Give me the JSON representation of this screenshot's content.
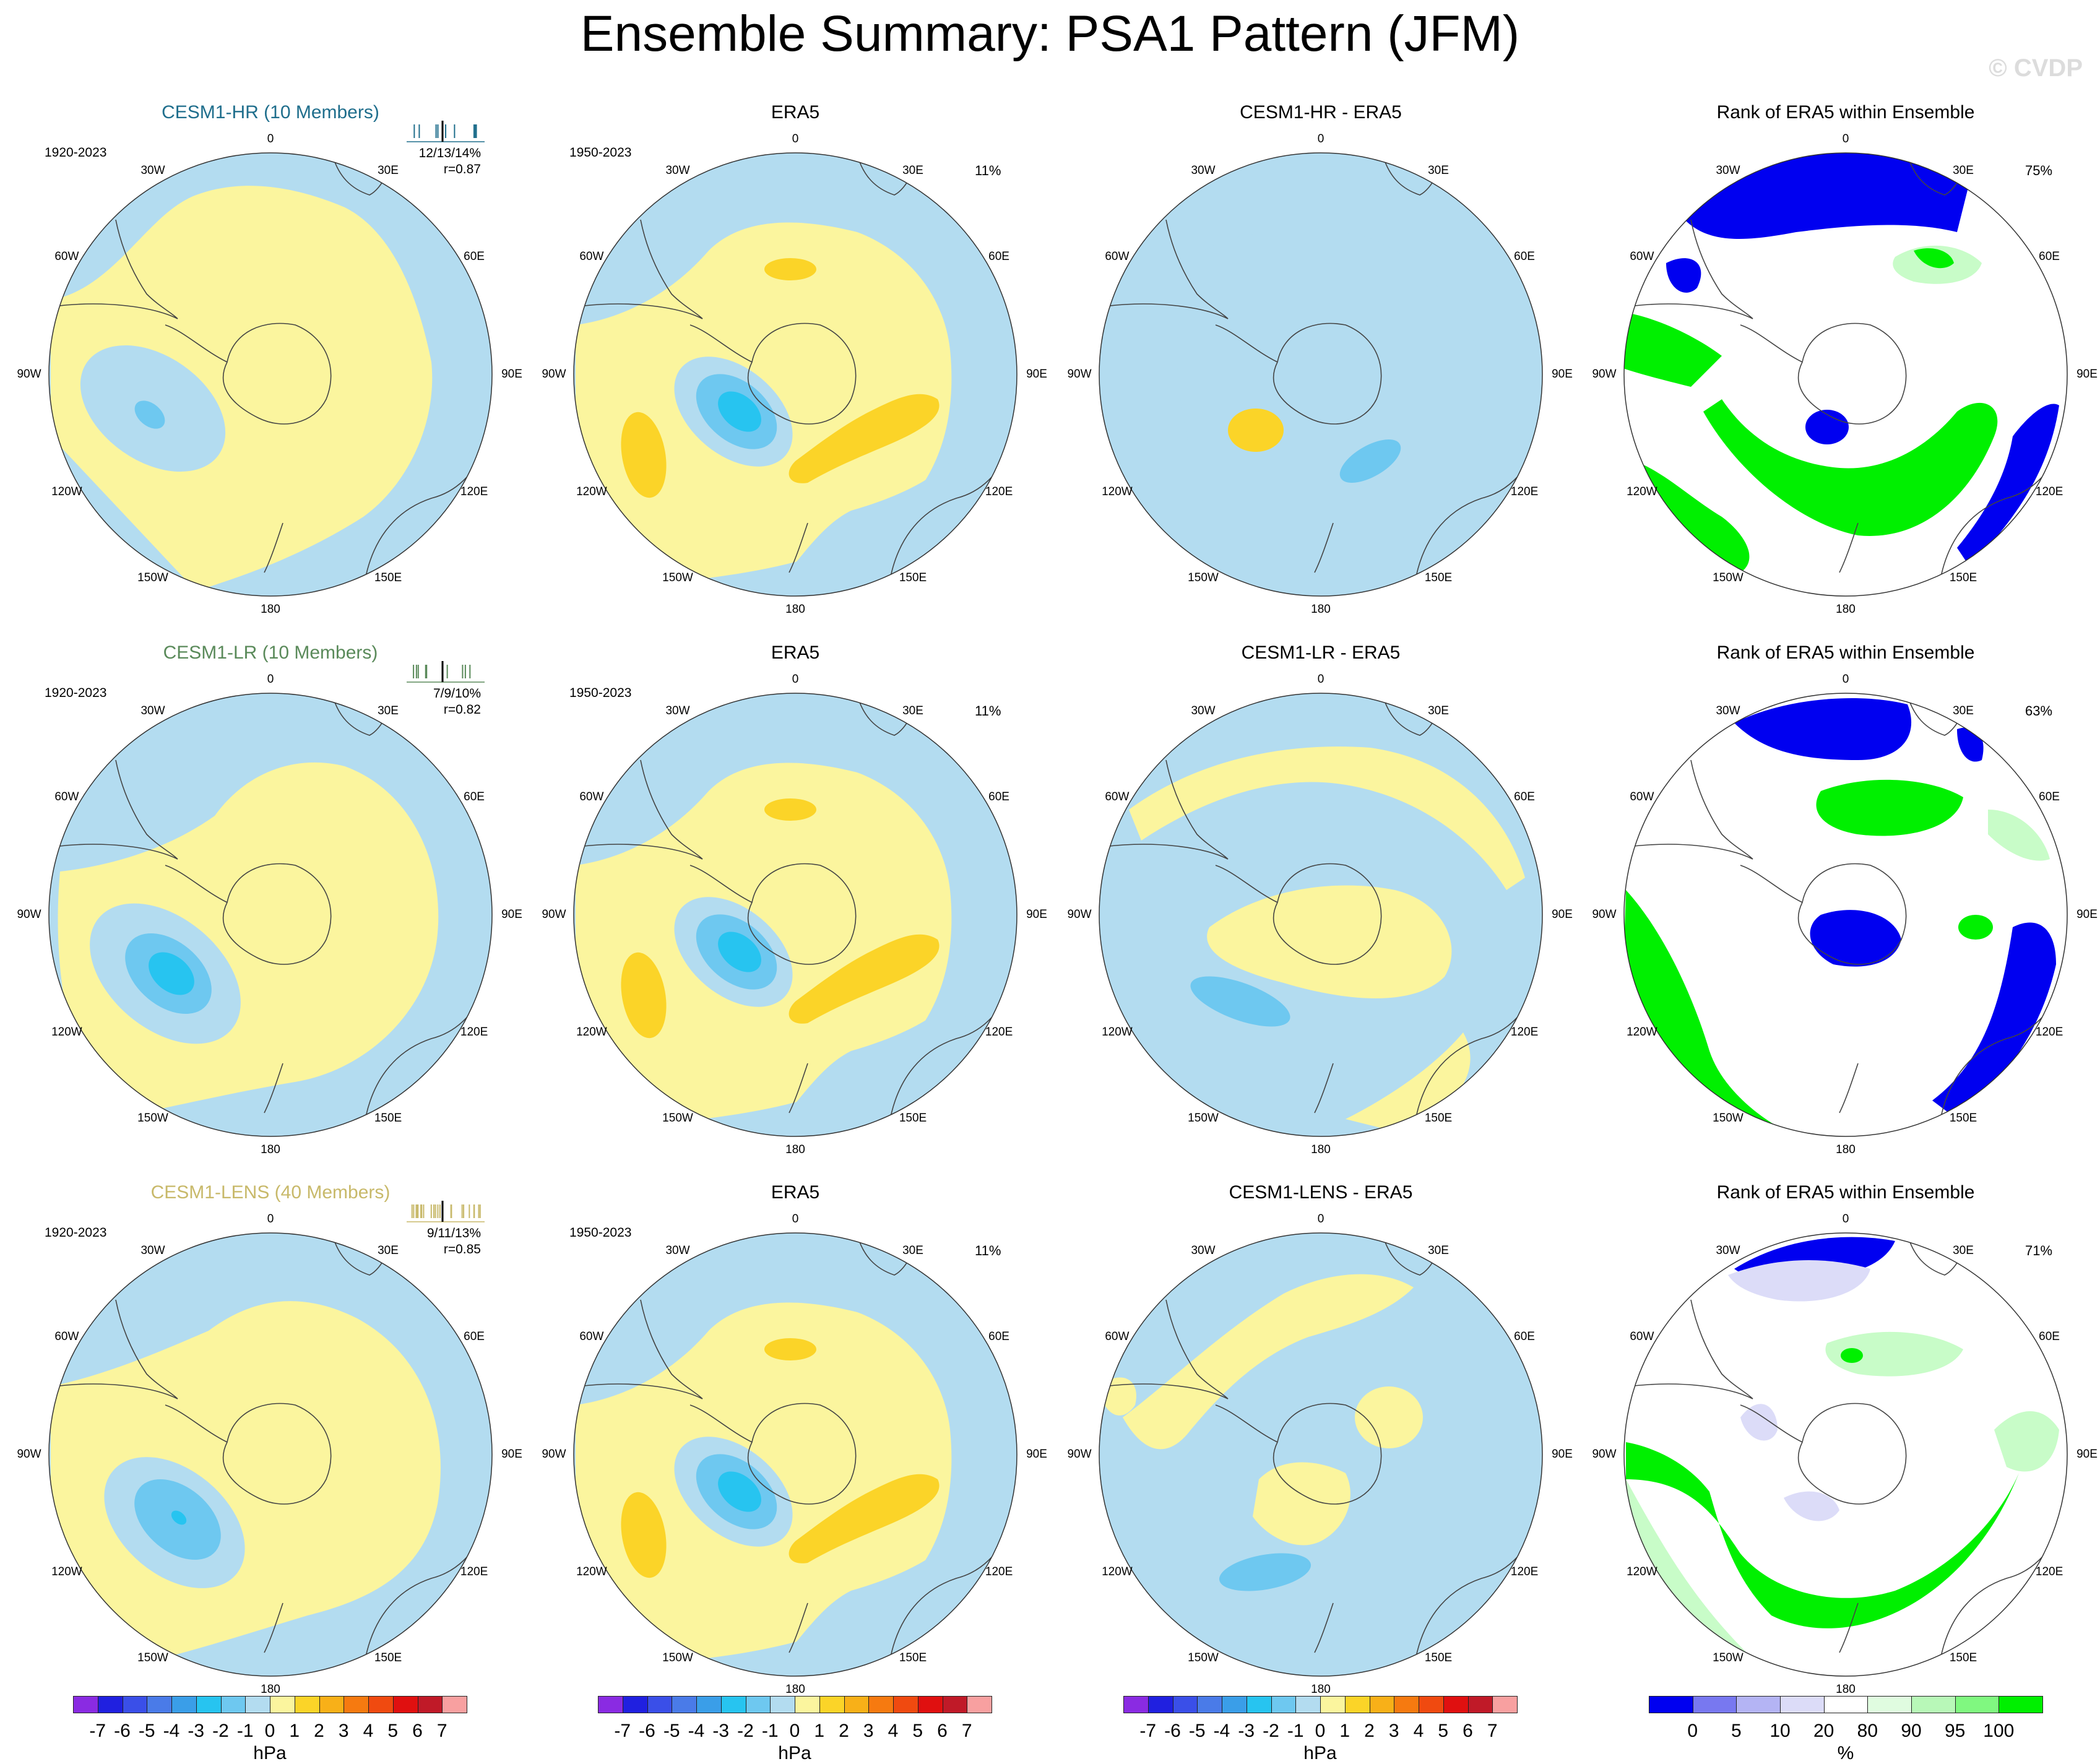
{
  "title": "Ensemble Summary: PSA1 Pattern (JFM)",
  "watermark": "© CVDP",
  "rows": [
    {
      "model_title": "CESM1-HR (10 Members)",
      "model_color": "#1f6e8c",
      "model_period": "1920-2023",
      "model_stats": [
        "12/13/14%",
        "r=0.87"
      ],
      "era_title": "ERA5",
      "era_period": "1950-2023",
      "era_pct": "11%",
      "diff_title": "CESM1-HR - ERA5",
      "rank_title": "Rank of ERA5 within Ensemble",
      "rank_pct": "75%"
    },
    {
      "model_title": "CESM1-LR (10 Members)",
      "model_color": "#5a8a5a",
      "model_period": "1920-2023",
      "model_stats": [
        "7/9/10%",
        "r=0.82"
      ],
      "era_title": "ERA5",
      "era_period": "1950-2023",
      "era_pct": "11%",
      "diff_title": "CESM1-LR - ERA5",
      "rank_title": "Rank of ERA5 within Ensemble",
      "rank_pct": "63%"
    },
    {
      "model_title": "CESM1-LENS (40 Members)",
      "model_color": "#c8b96a",
      "model_period": "1920-2023",
      "model_stats": [
        "9/11/13%",
        "r=0.85"
      ],
      "era_title": "ERA5",
      "era_period": "1950-2023",
      "era_pct": "11%",
      "diff_title": "CESM1-LENS - ERA5",
      "rank_title": "Rank of ERA5 within Ensemble",
      "rank_pct": "71%"
    }
  ],
  "longitude_labels": [
    "0",
    "30E",
    "60E",
    "90E",
    "120E",
    "150E",
    "180",
    "150W",
    "120W",
    "90W",
    "60W",
    "30W"
  ],
  "colorbar_hpa": {
    "unit": "hPa",
    "ticks": [
      "-7",
      "-6",
      "-5",
      "-4",
      "-3",
      "-2",
      "-1",
      "0",
      "1",
      "2",
      "3",
      "4",
      "5",
      "6",
      "7"
    ],
    "colors": [
      "#8a2be2",
      "#2020e0",
      "#3a4fe8",
      "#4a7be8",
      "#3a9ee8",
      "#27c4f0",
      "#6ec8f0",
      "#b3dcf0",
      "#fbf59e",
      "#fbd428",
      "#f8b018",
      "#f67a10",
      "#f04a10",
      "#e01010",
      "#c01a28",
      "#f8a0a0"
    ]
  },
  "colorbar_rank": {
    "unit": "%",
    "ticks": [
      "0",
      "5",
      "10",
      "20",
      "80",
      "90",
      "95",
      "100"
    ],
    "colors": [
      "#0000f0",
      "#7878f0",
      "#b4b4f4",
      "#dcdcf8",
      "#ffffff",
      "#e0fce0",
      "#b8f8b8",
      "#80f880",
      "#00f000"
    ]
  },
  "palette": {
    "blue_light": "#b3dcf0",
    "blue_mid": "#6ec8f0",
    "blue_dark": "#27c4f0",
    "yellow": "#fbf59e",
    "orange": "#fbd428",
    "rank_blue": "#0000f0",
    "rank_green": "#00f000",
    "rank_lightgreen": "#c8fcc8",
    "rank_lavender": "#dcdcf8"
  }
}
